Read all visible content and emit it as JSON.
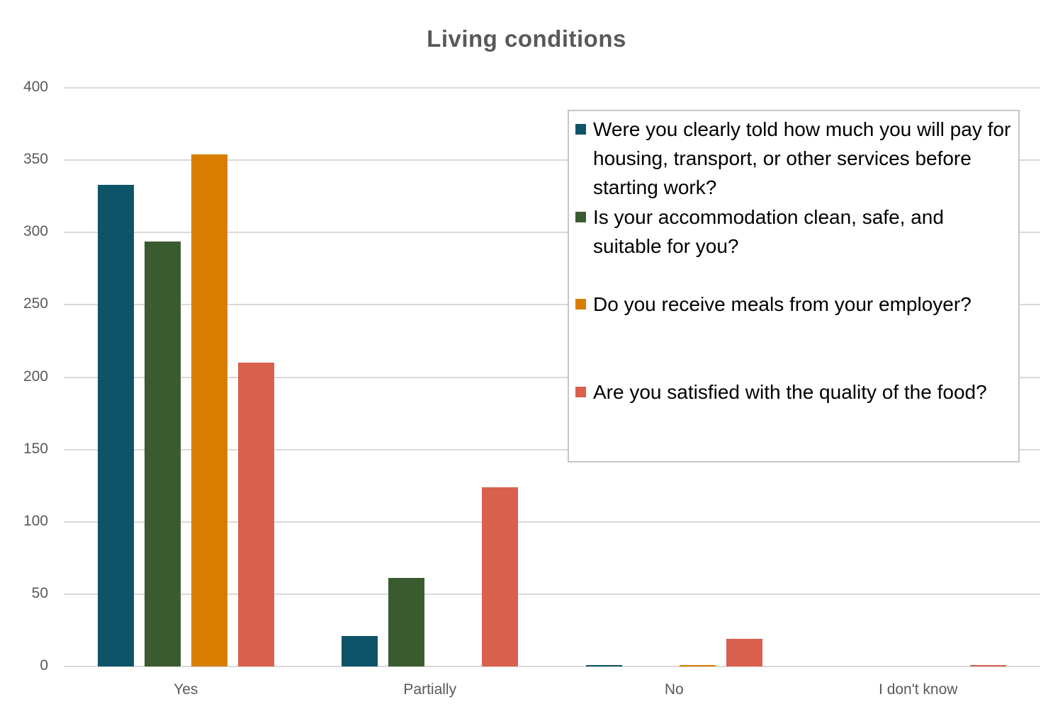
{
  "chart_data": {
    "type": "bar",
    "title": "Living conditions",
    "categories": [
      "Yes",
      "Partially",
      "No",
      "I don't know"
    ],
    "series": [
      {
        "name": "Were you clearly told how much you will pay for housing, transport, or other services before starting work?",
        "color": "#0d5469",
        "values": [
          333,
          21,
          1,
          0
        ]
      },
      {
        "name": "Is your accommodation clean, safe, and suitable for you?",
        "color": "#3a5b2f",
        "values": [
          294,
          61,
          0,
          0
        ]
      },
      {
        "name": "Do you receive meals from your employer?",
        "color": "#d97d00",
        "values": [
          354,
          0,
          1,
          0
        ]
      },
      {
        "name": "Are you satisfied with the quality of the food?",
        "color": "#d8604d",
        "values": [
          210,
          124,
          19,
          1
        ]
      }
    ],
    "xlabel": "",
    "ylabel": "",
    "ylim": [
      0,
      400
    ],
    "ytick_step": 50,
    "grid": true,
    "legend_position": "right-overlay",
    "text_color": "#595959",
    "grid_color": "#d9d9d9",
    "legend_text_color": "#000000"
  }
}
